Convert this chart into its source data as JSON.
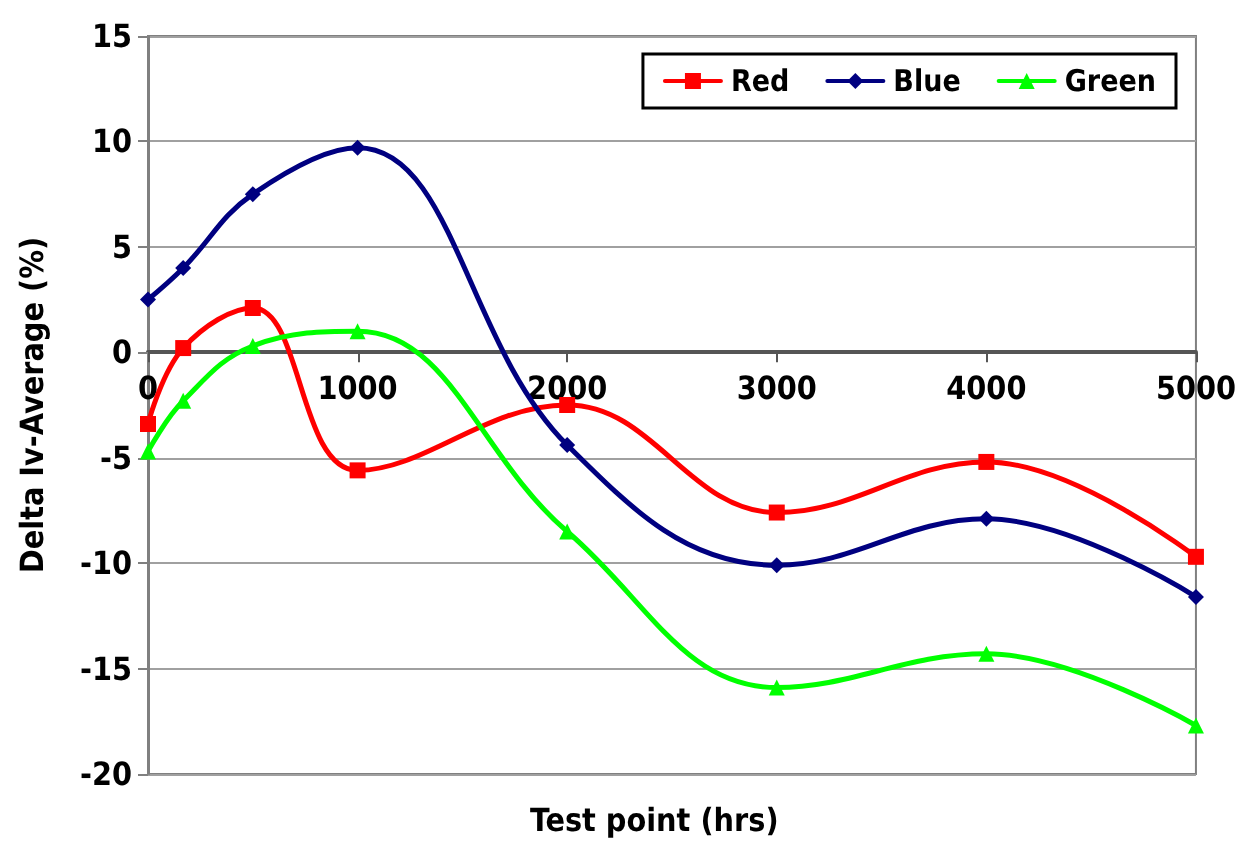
{
  "chart_data": {
    "type": "line",
    "xlabel": "Test point (hrs)",
    "ylabel": "Delta Iv-Average (%)",
    "x": [
      0,
      168,
      500,
      1000,
      2000,
      3000,
      4000,
      5000
    ],
    "series": [
      {
        "name": "Red",
        "color": "#ff0000",
        "marker": "square",
        "values": [
          -3.4,
          0.2,
          2.1,
          -5.6,
          -2.5,
          -7.6,
          -5.2,
          -9.7
        ]
      },
      {
        "name": "Blue",
        "color": "#000080",
        "marker": "diamond",
        "values": [
          2.5,
          4.0,
          7.5,
          9.7,
          -4.4,
          -10.1,
          -7.9,
          -11.6
        ]
      },
      {
        "name": "Green",
        "color": "#00ff00",
        "marker": "triangle",
        "values": [
          -4.7,
          -2.3,
          0.3,
          1.0,
          -8.5,
          -15.9,
          -14.3,
          -17.7
        ]
      }
    ],
    "xlim": [
      0,
      5000
    ],
    "xticks": [
      0,
      1000,
      2000,
      3000,
      4000,
      5000
    ],
    "ylim": [
      -20,
      15
    ],
    "yticks": [
      -20,
      -15,
      -10,
      -5,
      0,
      5,
      10,
      15
    ],
    "grid": "y",
    "legend": "top right",
    "line_style": "solid"
  }
}
